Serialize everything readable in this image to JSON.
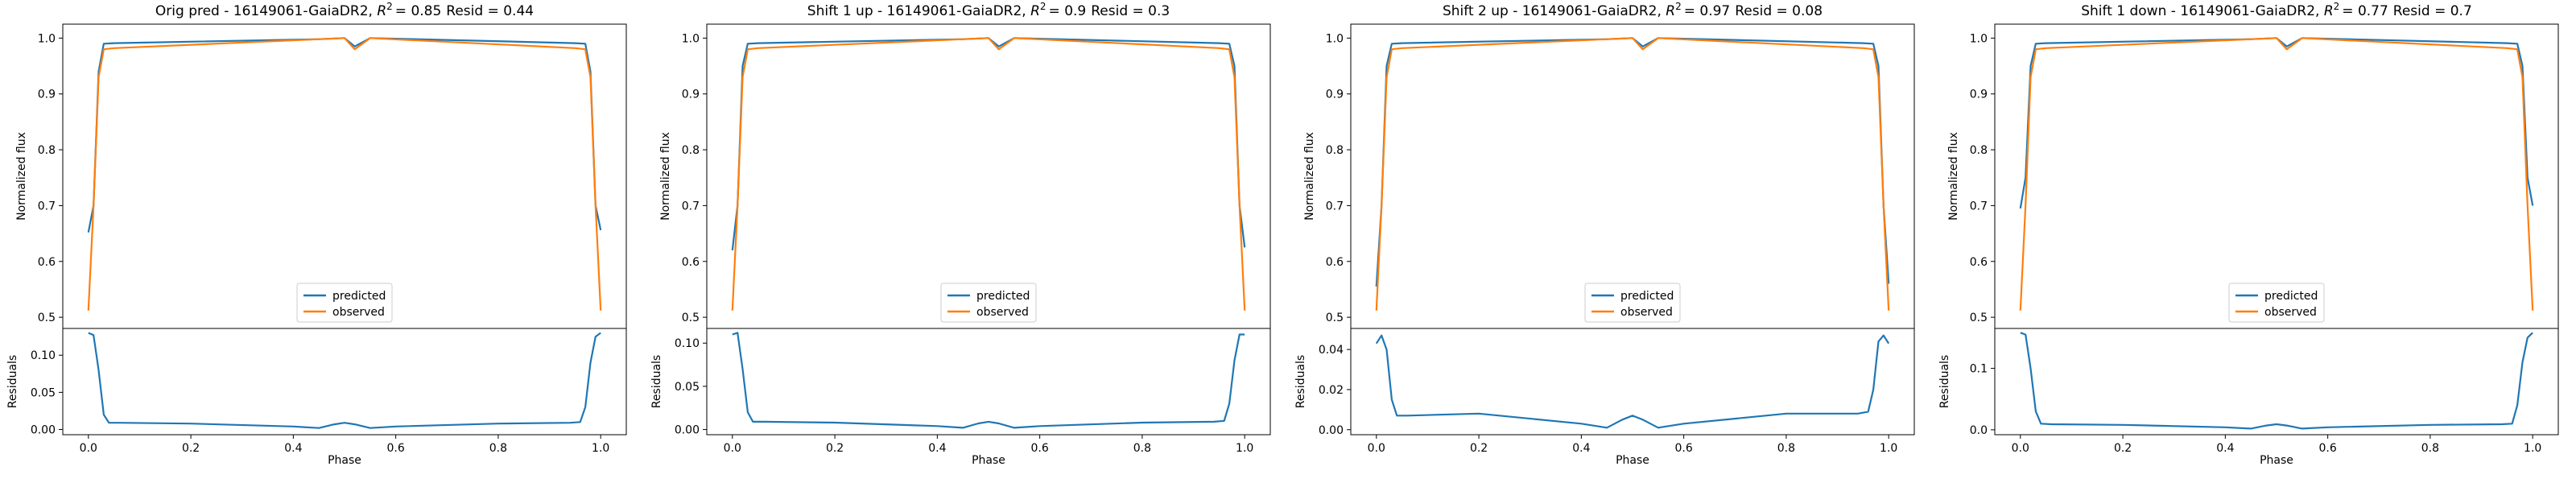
{
  "figure": {
    "colors": {
      "predicted": "#1f77b4",
      "observed": "#ff7f0e",
      "axis": "#000000"
    }
  },
  "chart_data": [
    {
      "type": "line",
      "title": "Orig pred - 16149061-GaiaDR2, R² = 0.85 Resid = 0.44",
      "title_prefix": "Orig pred - 16149061-GaiaDR2, ",
      "title_r2": "= 0.85",
      "title_resid": "Resid = 0.44",
      "xlabel": "Phase",
      "ylabel_top": "Normalized flux",
      "ylabel_bottom": "Residuals",
      "xlim": [
        -0.05,
        1.05
      ],
      "ylim_top": [
        0.48,
        1.025
      ],
      "ylim_bottom": [
        -0.007,
        0.136
      ],
      "xticks": [
        0.0,
        0.2,
        0.4,
        0.6,
        0.8,
        1.0
      ],
      "yticks_top": [
        0.5,
        0.6,
        0.7,
        0.8,
        0.9,
        1.0
      ],
      "yticks_bottom": [
        0.0,
        0.05,
        0.1
      ],
      "legend": {
        "position": "lower center",
        "entries": [
          "predicted",
          "observed"
        ]
      },
      "x": [
        0.0,
        0.01,
        0.02,
        0.03,
        0.05,
        0.45,
        0.5,
        0.52,
        0.55,
        0.95,
        0.97,
        0.98,
        0.99,
        1.0
      ],
      "series": [
        {
          "name": "predicted",
          "values": [
            0.652,
            0.7,
            0.94,
            0.99,
            0.991,
            0.998,
            1.0,
            0.985,
            1.0,
            0.991,
            0.99,
            0.94,
            0.7,
            0.656
          ]
        },
        {
          "name": "observed",
          "values": [
            0.512,
            0.7,
            0.93,
            0.98,
            0.982,
            0.998,
            1.0,
            0.98,
            1.0,
            0.982,
            0.98,
            0.93,
            0.7,
            0.512
          ]
        }
      ],
      "residuals": {
        "x": [
          0.0,
          0.01,
          0.02,
          0.03,
          0.04,
          0.06,
          0.2,
          0.4,
          0.45,
          0.48,
          0.5,
          0.52,
          0.55,
          0.6,
          0.8,
          0.94,
          0.96,
          0.97,
          0.98,
          0.99,
          1.0
        ],
        "values": [
          0.13,
          0.127,
          0.08,
          0.02,
          0.009,
          0.009,
          0.008,
          0.004,
          0.002,
          0.007,
          0.009,
          0.007,
          0.002,
          0.004,
          0.008,
          0.009,
          0.01,
          0.03,
          0.09,
          0.125,
          0.13
        ]
      }
    },
    {
      "type": "line",
      "title": "Shift 1 up - 16149061-GaiaDR2, R² = 0.9 Resid = 0.3",
      "title_prefix": "Shift 1 up - 16149061-GaiaDR2, ",
      "title_r2": "= 0.9",
      "title_resid": "Resid = 0.3",
      "xlabel": "Phase",
      "ylabel_top": "Normalized flux",
      "ylabel_bottom": "Residuals",
      "xlim": [
        -0.05,
        1.05
      ],
      "ylim_top": [
        0.48,
        1.025
      ],
      "ylim_bottom": [
        -0.006,
        0.117
      ],
      "xticks": [
        0.0,
        0.2,
        0.4,
        0.6,
        0.8,
        1.0
      ],
      "yticks_top": [
        0.5,
        0.6,
        0.7,
        0.8,
        0.9,
        1.0
      ],
      "yticks_bottom": [
        0.0,
        0.05,
        0.1
      ],
      "legend": {
        "position": "lower center",
        "entries": [
          "predicted",
          "observed"
        ]
      },
      "x": [
        0.0,
        0.01,
        0.02,
        0.03,
        0.05,
        0.45,
        0.5,
        0.52,
        0.55,
        0.95,
        0.97,
        0.98,
        0.99,
        1.0
      ],
      "series": [
        {
          "name": "predicted",
          "values": [
            0.62,
            0.7,
            0.95,
            0.99,
            0.991,
            0.998,
            1.0,
            0.985,
            1.0,
            0.991,
            0.99,
            0.95,
            0.7,
            0.625
          ]
        },
        {
          "name": "observed",
          "values": [
            0.512,
            0.7,
            0.93,
            0.98,
            0.982,
            0.998,
            1.0,
            0.98,
            1.0,
            0.982,
            0.98,
            0.93,
            0.7,
            0.512
          ]
        }
      ],
      "residuals": {
        "x": [
          0.0,
          0.01,
          0.02,
          0.03,
          0.04,
          0.06,
          0.2,
          0.4,
          0.45,
          0.48,
          0.5,
          0.52,
          0.55,
          0.6,
          0.8,
          0.94,
          0.96,
          0.97,
          0.98,
          0.99,
          1.0
        ],
        "values": [
          0.11,
          0.112,
          0.07,
          0.02,
          0.009,
          0.009,
          0.008,
          0.004,
          0.002,
          0.007,
          0.009,
          0.007,
          0.002,
          0.004,
          0.008,
          0.009,
          0.01,
          0.03,
          0.08,
          0.11,
          0.11
        ]
      }
    },
    {
      "type": "line",
      "title": "Shift 2 up - 16149061-GaiaDR2, R² = 0.97 Resid = 0.08",
      "title_prefix": "Shift 2 up - 16149061-GaiaDR2, ",
      "title_r2": "= 0.97",
      "title_resid": "Resid = 0.08",
      "xlabel": "Phase",
      "ylabel_top": "Normalized flux",
      "ylabel_bottom": "Residuals",
      "xlim": [
        -0.05,
        1.05
      ],
      "ylim_top": [
        0.48,
        1.025
      ],
      "ylim_bottom": [
        -0.0025,
        0.0505
      ],
      "xticks": [
        0.0,
        0.2,
        0.4,
        0.6,
        0.8,
        1.0
      ],
      "yticks_top": [
        0.5,
        0.6,
        0.7,
        0.8,
        0.9,
        1.0
      ],
      "yticks_bottom": [
        0.0,
        0.02,
        0.04
      ],
      "legend": {
        "position": "lower center",
        "entries": [
          "predicted",
          "observed"
        ]
      },
      "x": [
        0.0,
        0.01,
        0.02,
        0.03,
        0.05,
        0.45,
        0.5,
        0.52,
        0.55,
        0.95,
        0.97,
        0.98,
        0.99,
        1.0
      ],
      "series": [
        {
          "name": "predicted",
          "values": [
            0.555,
            0.7,
            0.95,
            0.99,
            0.991,
            0.998,
            1.0,
            0.985,
            1.0,
            0.991,
            0.99,
            0.95,
            0.7,
            0.56
          ]
        },
        {
          "name": "observed",
          "values": [
            0.512,
            0.7,
            0.93,
            0.98,
            0.982,
            0.998,
            1.0,
            0.98,
            1.0,
            0.982,
            0.98,
            0.93,
            0.7,
            0.512
          ]
        }
      ],
      "residuals": {
        "x": [
          0.0,
          0.01,
          0.02,
          0.03,
          0.04,
          0.06,
          0.2,
          0.4,
          0.45,
          0.48,
          0.5,
          0.52,
          0.55,
          0.6,
          0.8,
          0.94,
          0.96,
          0.97,
          0.98,
          0.99,
          1.0
        ],
        "values": [
          0.043,
          0.047,
          0.04,
          0.015,
          0.007,
          0.007,
          0.008,
          0.003,
          0.001,
          0.005,
          0.007,
          0.005,
          0.001,
          0.003,
          0.008,
          0.008,
          0.009,
          0.02,
          0.044,
          0.047,
          0.043
        ]
      }
    },
    {
      "type": "line",
      "title": "Shift 1 down - 16149061-GaiaDR2, R² = 0.77 Resid = 0.7",
      "title_prefix": "Shift 1 down - 16149061-GaiaDR2, ",
      "title_r2": "= 0.77",
      "title_resid": "Resid = 0.7",
      "xlabel": "Phase",
      "ylabel_top": "Normalized flux",
      "ylabel_bottom": "Residuals",
      "xlim": [
        -0.05,
        1.05
      ],
      "ylim_top": [
        0.48,
        1.025
      ],
      "ylim_bottom": [
        -0.008,
        0.165
      ],
      "xticks": [
        0.0,
        0.2,
        0.4,
        0.6,
        0.8,
        1.0
      ],
      "yticks_top": [
        0.5,
        0.6,
        0.7,
        0.8,
        0.9,
        1.0
      ],
      "yticks_bottom": [
        0.0,
        0.1
      ],
      "legend": {
        "position": "lower center",
        "entries": [
          "predicted",
          "observed"
        ]
      },
      "x": [
        0.0,
        0.01,
        0.02,
        0.03,
        0.05,
        0.45,
        0.5,
        0.52,
        0.55,
        0.95,
        0.97,
        0.98,
        0.99,
        1.0
      ],
      "series": [
        {
          "name": "predicted",
          "values": [
            0.695,
            0.75,
            0.95,
            0.99,
            0.991,
            0.998,
            1.0,
            0.985,
            1.0,
            0.991,
            0.99,
            0.95,
            0.75,
            0.7
          ]
        },
        {
          "name": "observed",
          "values": [
            0.512,
            0.7,
            0.93,
            0.98,
            0.982,
            0.998,
            1.0,
            0.98,
            1.0,
            0.982,
            0.98,
            0.93,
            0.7,
            0.512
          ]
        }
      ],
      "residuals": {
        "x": [
          0.0,
          0.01,
          0.02,
          0.03,
          0.04,
          0.06,
          0.2,
          0.4,
          0.45,
          0.48,
          0.5,
          0.52,
          0.55,
          0.6,
          0.8,
          0.94,
          0.96,
          0.97,
          0.98,
          0.99,
          1.0
        ],
        "values": [
          0.158,
          0.155,
          0.1,
          0.03,
          0.01,
          0.009,
          0.008,
          0.004,
          0.002,
          0.007,
          0.009,
          0.007,
          0.002,
          0.004,
          0.008,
          0.009,
          0.01,
          0.04,
          0.11,
          0.15,
          0.158
        ]
      }
    }
  ]
}
